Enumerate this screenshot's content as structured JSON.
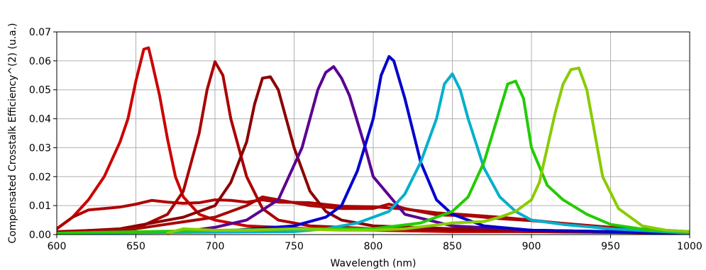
{
  "chart_data": {
    "type": "line",
    "title": "",
    "xlabel": "Wavelength (nm)",
    "ylabel": "Compensated Crosstalk Efficiency^(2) (u.a.)",
    "xlim": [
      600,
      1000
    ],
    "ylim": [
      0,
      0.07
    ],
    "xticks": [
      600,
      650,
      700,
      750,
      800,
      850,
      900,
      950,
      1000
    ],
    "xtick_labels": [
      "600",
      "650",
      "700",
      "750",
      "800",
      "850",
      "900",
      "950",
      "1000"
    ],
    "yticks": [
      0,
      0.01,
      0.02,
      0.03,
      0.04,
      0.05,
      0.06,
      0.07
    ],
    "ytick_labels": [
      "0.00",
      "0.01",
      "0.02",
      "0.03",
      "0.04",
      "0.05",
      "0.06",
      "0.07"
    ],
    "grid": true,
    "legend": "none",
    "series": [
      {
        "color": "#cc0000",
        "x": [
          600,
          610,
          620,
          630,
          640,
          645,
          650,
          655,
          658,
          660,
          665,
          670,
          675,
          680,
          690,
          700,
          720,
          760,
          800,
          850,
          900,
          950,
          1000
        ],
        "y": [
          0.002,
          0.006,
          0.012,
          0.02,
          0.032,
          0.04,
          0.053,
          0.064,
          0.0645,
          0.06,
          0.048,
          0.033,
          0.02,
          0.013,
          0.007,
          0.005,
          0.003,
          0.002,
          0.0015,
          0.001,
          0.001,
          0.0008,
          0.0005
        ]
      },
      {
        "color": "#b00000",
        "x": [
          600,
          610,
          620,
          630,
          640,
          650,
          660,
          670,
          680,
          690,
          700,
          710,
          720,
          730,
          740,
          760,
          780,
          800,
          820,
          840,
          860,
          880,
          900,
          950,
          1000
        ],
        "y": [
          0.002,
          0.006,
          0.0085,
          0.009,
          0.0095,
          0.0105,
          0.0118,
          0.0112,
          0.0108,
          0.011,
          0.012,
          0.0118,
          0.0112,
          0.012,
          0.0112,
          0.011,
          0.0098,
          0.0096,
          0.0088,
          0.0075,
          0.0068,
          0.006,
          0.005,
          0.002,
          0.0008
        ]
      },
      {
        "color": "#aa0000",
        "x": [
          600,
          650,
          670,
          680,
          690,
          695,
          700,
          705,
          710,
          720,
          730,
          740,
          760,
          800,
          850,
          900,
          1000
        ],
        "y": [
          0.001,
          0.002,
          0.007,
          0.015,
          0.035,
          0.05,
          0.0597,
          0.055,
          0.04,
          0.02,
          0.009,
          0.005,
          0.003,
          0.002,
          0.0015,
          0.001,
          0.0005
        ]
      },
      {
        "color": "#8b0000",
        "x": [
          600,
          640,
          660,
          680,
          700,
          710,
          720,
          725,
          730,
          735,
          740,
          745,
          750,
          760,
          770,
          780,
          800,
          850,
          900,
          1000
        ],
        "y": [
          0.0008,
          0.002,
          0.004,
          0.006,
          0.01,
          0.018,
          0.032,
          0.045,
          0.054,
          0.0545,
          0.05,
          0.04,
          0.03,
          0.015,
          0.008,
          0.005,
          0.003,
          0.002,
          0.0015,
          0.0006
        ]
      },
      {
        "color": "#a80808",
        "x": [
          600,
          650,
          700,
          720,
          730,
          740,
          760,
          780,
          800,
          810,
          820,
          840,
          860,
          880,
          900,
          950,
          1000
        ],
        "y": [
          0.0005,
          0.002,
          0.006,
          0.01,
          0.013,
          0.012,
          0.01,
          0.009,
          0.009,
          0.0105,
          0.009,
          0.0068,
          0.0065,
          0.0055,
          0.0048,
          0.0025,
          0.001
        ]
      },
      {
        "color": "#5a0090",
        "x": [
          600,
          680,
          700,
          720,
          740,
          755,
          765,
          770,
          775,
          780,
          785,
          795,
          800,
          820,
          850,
          900,
          1000
        ],
        "y": [
          0.0005,
          0.001,
          0.0025,
          0.005,
          0.012,
          0.03,
          0.05,
          0.056,
          0.058,
          0.054,
          0.048,
          0.03,
          0.02,
          0.007,
          0.003,
          0.0015,
          0.0005
        ]
      },
      {
        "color": "#0000cc",
        "x": [
          600,
          700,
          750,
          770,
          780,
          790,
          800,
          805,
          810,
          813,
          820,
          830,
          840,
          850,
          870,
          900,
          950,
          1000
        ],
        "y": [
          0.0005,
          0.001,
          0.003,
          0.006,
          0.01,
          0.022,
          0.04,
          0.055,
          0.0615,
          0.06,
          0.047,
          0.025,
          0.012,
          0.007,
          0.003,
          0.0015,
          0.001,
          0.0003
        ]
      },
      {
        "color": "#00b0cc",
        "x": [
          600,
          750,
          770,
          790,
          810,
          820,
          830,
          840,
          845,
          850,
          855,
          860,
          870,
          880,
          890,
          900,
          920,
          950,
          1000
        ],
        "y": [
          0.0005,
          0.001,
          0.002,
          0.004,
          0.008,
          0.014,
          0.025,
          0.04,
          0.052,
          0.0555,
          0.05,
          0.04,
          0.023,
          0.013,
          0.008,
          0.005,
          0.0035,
          0.002,
          0.0005
        ]
      },
      {
        "color": "#22cc00",
        "x": [
          600,
          760,
          800,
          830,
          850,
          860,
          870,
          880,
          885,
          890,
          895,
          900,
          910,
          920,
          935,
          950,
          975,
          1000
        ],
        "y": [
          0.0005,
          0.002,
          0.002,
          0.004,
          0.008,
          0.013,
          0.025,
          0.043,
          0.052,
          0.053,
          0.047,
          0.03,
          0.017,
          0.012,
          0.007,
          0.0035,
          0.0015,
          0.001
        ]
      },
      {
        "color": "#88cc00",
        "x": [
          670,
          680,
          700,
          720,
          750,
          780,
          800,
          820,
          850,
          870,
          880,
          890,
          900,
          905,
          910,
          915,
          920,
          925,
          930,
          935,
          940,
          945,
          955,
          970,
          985,
          1000
        ],
        "y": [
          0.0005,
          0.002,
          0.0015,
          0.0015,
          0.002,
          0.0015,
          0.0015,
          0.002,
          0.004,
          0.0045,
          0.006,
          0.008,
          0.012,
          0.018,
          0.03,
          0.042,
          0.052,
          0.057,
          0.0575,
          0.05,
          0.035,
          0.02,
          0.009,
          0.003,
          0.0015,
          0.001
        ]
      }
    ]
  }
}
